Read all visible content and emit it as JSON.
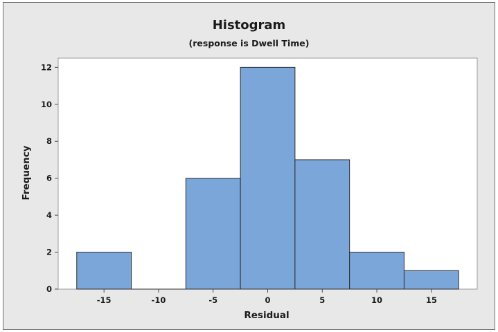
{
  "chart_data": {
    "type": "bar",
    "title": "Histogram",
    "subtitle": "(response is Dwell Time)",
    "xlabel": "Residual",
    "ylabel": "Frequency",
    "bin_width": 5,
    "bins": [
      {
        "center": -15,
        "count": 2
      },
      {
        "center": -10,
        "count": 0
      },
      {
        "center": -5,
        "count": 6
      },
      {
        "center": 0,
        "count": 12
      },
      {
        "center": 5,
        "count": 7
      },
      {
        "center": 10,
        "count": 2
      },
      {
        "center": 15,
        "count": 1
      }
    ],
    "xlim": [
      -19.2,
      19.2
    ],
    "ylim": [
      0,
      12.5
    ],
    "xticks": [
      -15,
      -10,
      -5,
      0,
      5,
      10,
      15
    ],
    "yticks": [
      0,
      2,
      4,
      6,
      8,
      10,
      12
    ],
    "grid": false,
    "legend": "none",
    "colors": {
      "bar_fill": "#7aa6da",
      "bar_stroke": "#2b2b2b",
      "frame_bg": "#e8e8e8",
      "plot_bg": "#ffffff"
    }
  }
}
